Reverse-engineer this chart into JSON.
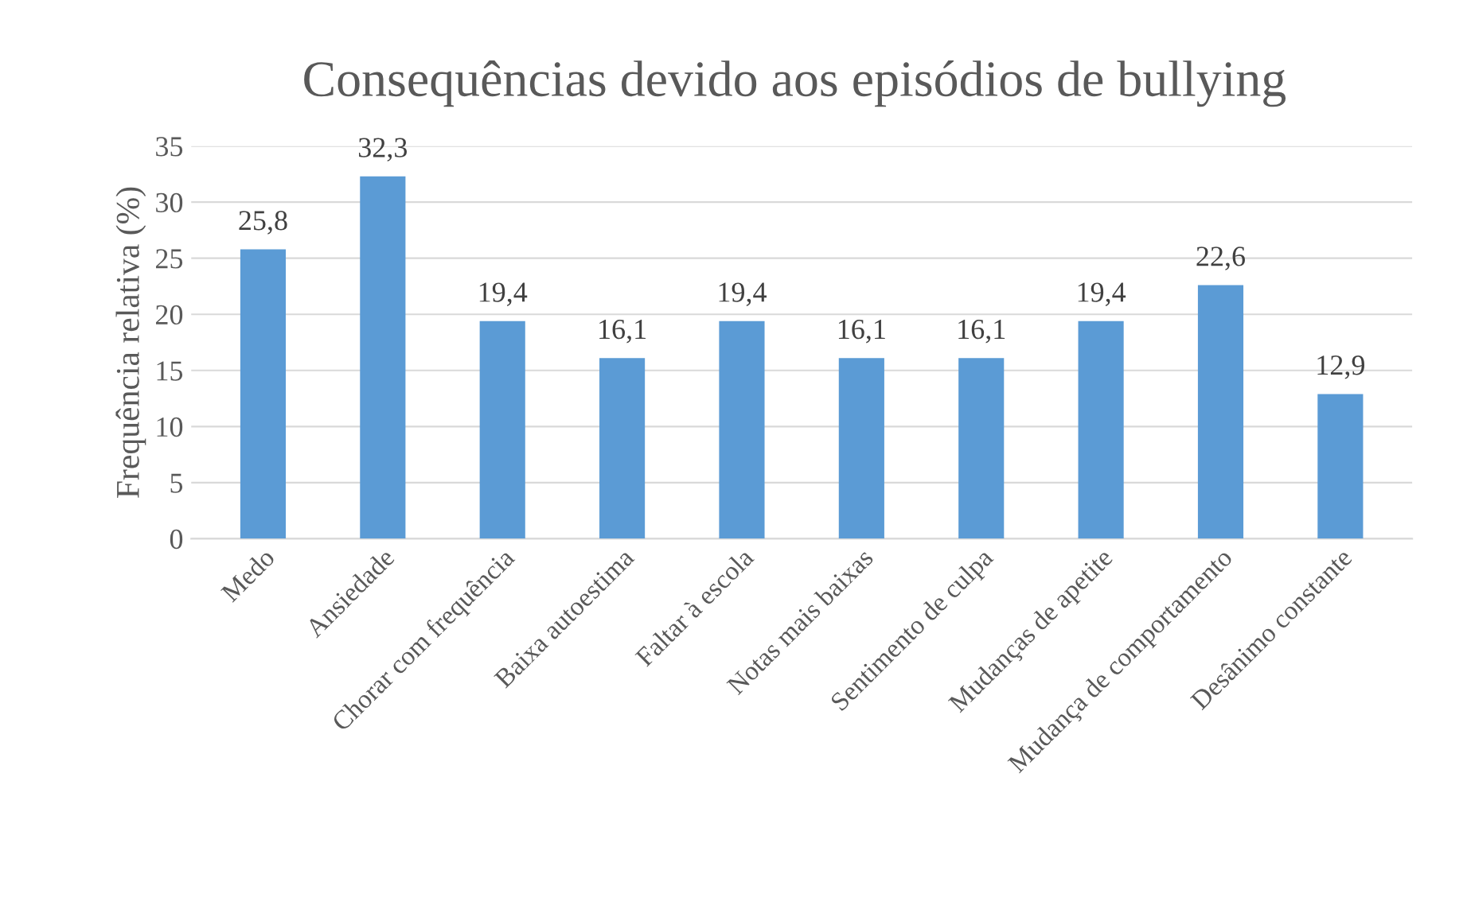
{
  "chart_data": {
    "type": "bar",
    "title": "Consequências devido aos episódios de bullying",
    "ylabel": "Frequência relativa (%)",
    "categories": [
      "Medo",
      "Ansiedade",
      "Chorar com frequência",
      "Baixa autoestima",
      "Faltar à escola",
      "Notas mais baixas",
      "Sentimento de culpa",
      "Mudanças de apetite",
      "Mudança de comportamento",
      "Desânimo constante"
    ],
    "values": [
      25.8,
      32.3,
      19.4,
      16.1,
      19.4,
      16.1,
      16.1,
      19.4,
      22.6,
      12.9
    ],
    "value_labels": [
      "25,8",
      "32,3",
      "19,4",
      "16,1",
      "19,4",
      "16,1",
      "16,1",
      "19,4",
      "22,6",
      "12,9"
    ],
    "color": "#5b9bd5",
    "ylim": [
      0,
      35
    ],
    "yticks": [
      0,
      5,
      10,
      15,
      20,
      25,
      30,
      35
    ],
    "grid": "y",
    "legend": false
  }
}
